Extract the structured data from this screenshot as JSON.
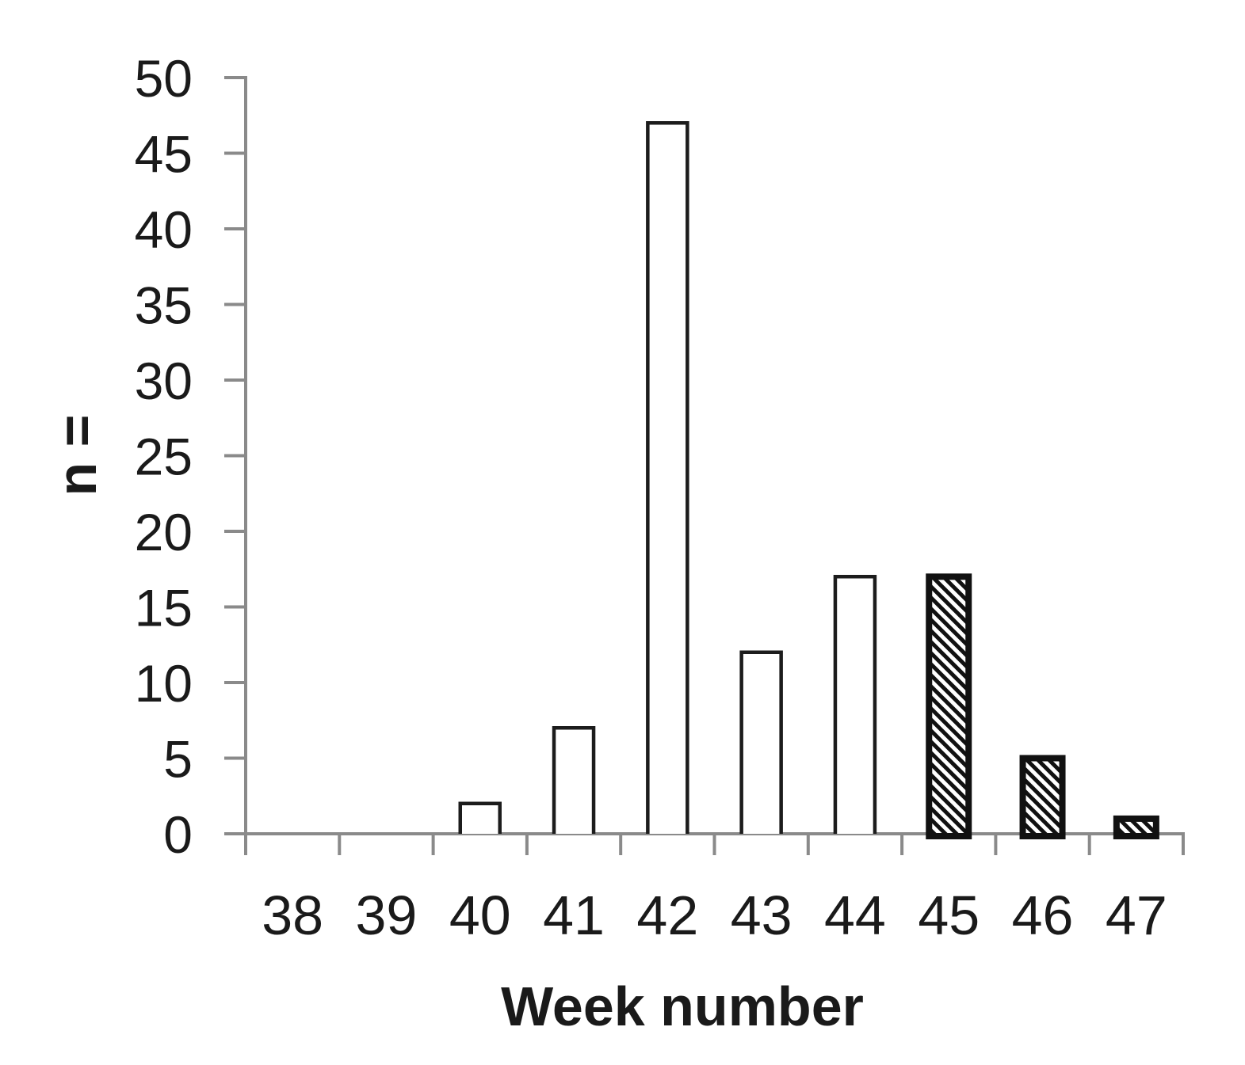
{
  "chart_data": {
    "type": "bar",
    "title": "",
    "xlabel": "Week number",
    "ylabel": "n =",
    "categories": [
      "38",
      "39",
      "40",
      "41",
      "42",
      "43",
      "44",
      "45",
      "46",
      "47"
    ],
    "values": [
      0,
      0,
      2,
      7,
      47,
      12,
      17,
      17,
      5,
      1
    ],
    "bar_styles": [
      "none",
      "none",
      "open",
      "open",
      "open",
      "open",
      "open",
      "hatched",
      "hatched",
      "hatched"
    ],
    "ylim": [
      0,
      50
    ],
    "ytick_step": 5,
    "ytick_labels": [
      "0",
      "5",
      "10",
      "15",
      "20",
      "25",
      "30",
      "35",
      "40",
      "45",
      "50"
    ],
    "grid": false,
    "legend_position": "none"
  },
  "styles": {
    "axis_color": "#8a8a8a",
    "ink_color": "#1a1a1a",
    "bar_edge_color": "#1c1c1c",
    "bar_face_color": "#ffffff",
    "hatch_color": "#111111",
    "background_color": "#ffffff"
  }
}
